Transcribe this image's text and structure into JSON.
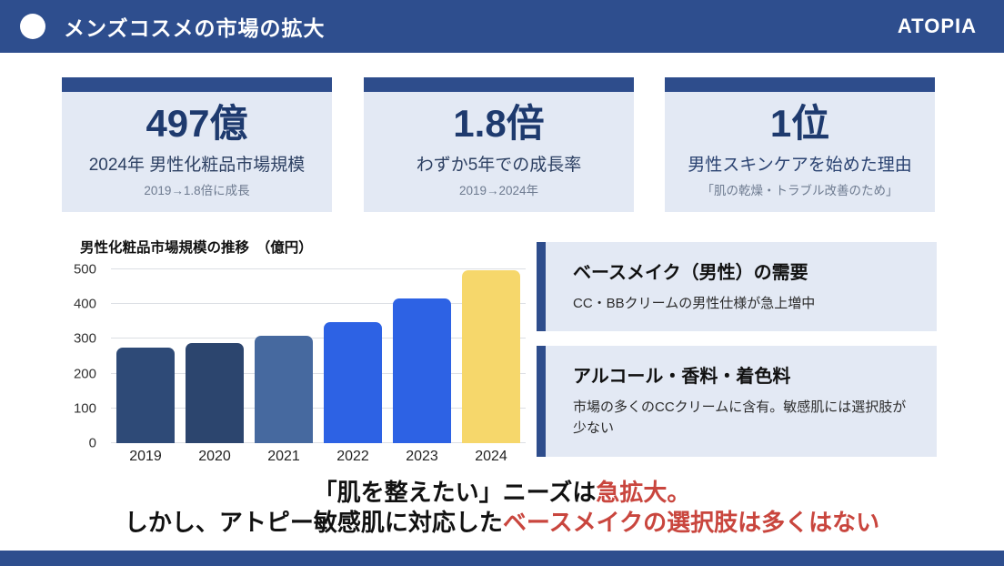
{
  "header": {
    "title": "メンズコスメの市場の拡大",
    "brand": "ATOPIA"
  },
  "stat_cards": [
    {
      "value": "497億",
      "label": "2024年 男性化粧品市場規模",
      "caption": "2019→1.8倍に成長"
    },
    {
      "value": "1.8倍",
      "label": "わずか5年での成長率",
      "caption": "2019→2024年"
    },
    {
      "value": "1位",
      "label": "男性スキンケアを始めた理由",
      "caption": "「肌の乾燥・トラブル改善のため」"
    }
  ],
  "chart_data": {
    "type": "bar",
    "title": "男性化粧品市場規模の推移　（億円）",
    "categories": [
      "2019",
      "2020",
      "2021",
      "2022",
      "2023",
      "2024"
    ],
    "values": [
      275,
      288,
      308,
      347,
      417,
      497
    ],
    "bar_colors": [
      "#2e4a77",
      "#2c456e",
      "#46699f",
      "#2d62e4",
      "#2d62e4",
      "#f6d76b"
    ],
    "xlabel": "",
    "ylabel": "億円",
    "ylim": [
      0,
      500
    ],
    "yticks": [
      0,
      100,
      200,
      300,
      400,
      500
    ],
    "grid": true,
    "legend": false
  },
  "info_boxes": [
    {
      "title": "ベースメイク（男性）の需要",
      "body": "CC・BBクリームの男性仕様が急上増中"
    },
    {
      "title": "アルコール・香料・着色料",
      "body": "市場の多くのCCクリームに含有。敏感肌には選択肢が少ない"
    }
  ],
  "conclusion": {
    "line1_black": "「肌を整えたい」ニーズは",
    "line1_red": "急拡大。",
    "line2_black": "しかし、アトピー敏感肌に対応した",
    "line2_red": "ベースメイクの選択肢は多くはない"
  },
  "colors": {
    "header_navy": "#2e4e8e",
    "card_accent_navy": "#2e4d8c",
    "card_bg": "#e3e9f4",
    "stat_text_navy": "#1e3a6e",
    "highlight_red": "#c9463e"
  }
}
